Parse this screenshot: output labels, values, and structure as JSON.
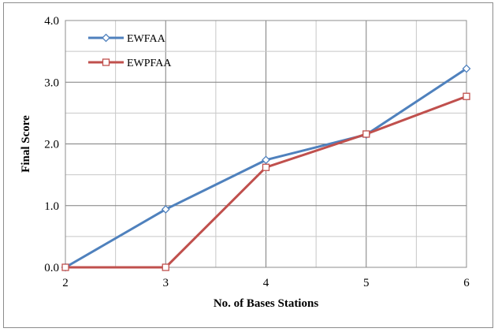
{
  "chart_data": {
    "type": "line",
    "title": "",
    "xlabel": "No. of Bases Stations",
    "ylabel": "Final Score",
    "x": [
      2,
      3,
      4,
      5,
      6
    ],
    "xticks": [
      "2",
      "3",
      "4",
      "5",
      "6"
    ],
    "yticks": [
      "0.0",
      "1.0",
      "2.0",
      "3.0",
      "4.0"
    ],
    "xlim": [
      2,
      6
    ],
    "ylim": [
      0,
      4
    ],
    "grid": true,
    "legend_position": "top-left",
    "series": [
      {
        "name": "EWFAA",
        "values": [
          0.0,
          0.94,
          1.74,
          2.15,
          3.22
        ],
        "color": "#4F81BD",
        "marker": "diamond"
      },
      {
        "name": "EWPFAA",
        "values": [
          0.0,
          0.0,
          1.62,
          2.16,
          2.77
        ],
        "color": "#C0504D",
        "marker": "square"
      }
    ]
  }
}
